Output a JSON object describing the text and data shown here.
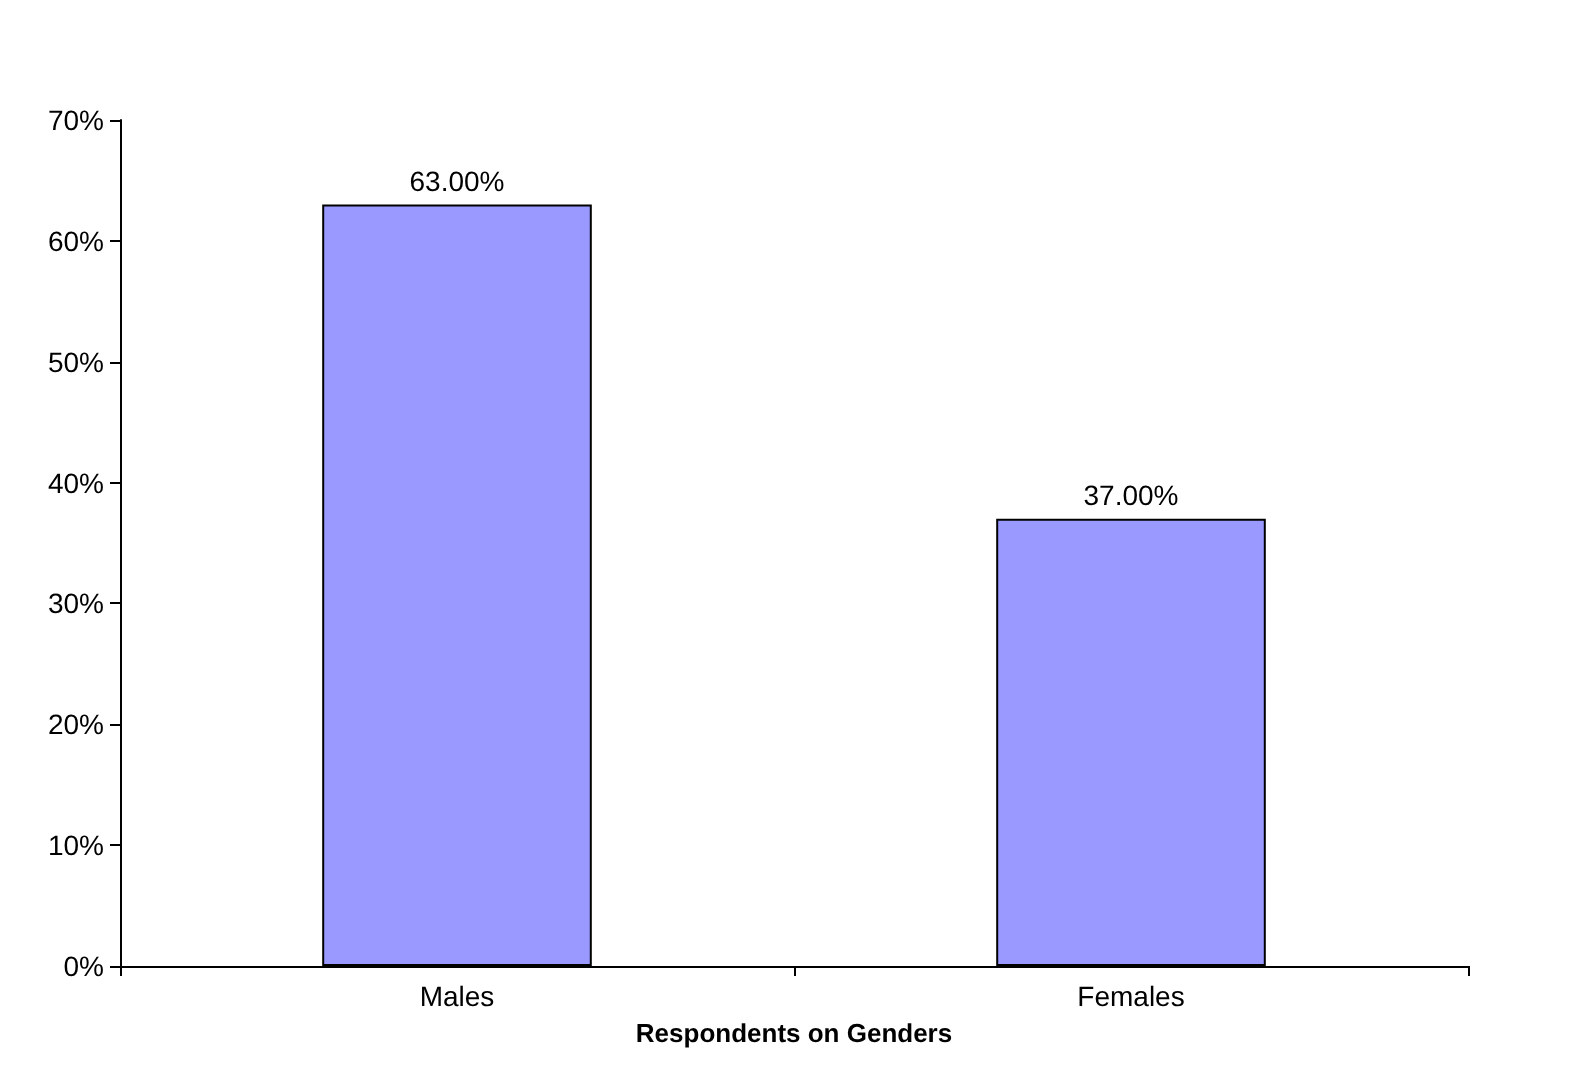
{
  "chart_data": {
    "type": "bar",
    "xlabel": "Respondents on Genders",
    "categories": [
      "Males",
      "Females"
    ],
    "values": [
      63,
      37
    ],
    "color": "#9999ff",
    "value_labels": [
      "63.00%",
      "37.00%"
    ],
    "ylim": [
      0,
      70
    ],
    "yticks": [
      {
        "value": 0,
        "label": "0%"
      },
      {
        "value": 10,
        "label": "10%"
      },
      {
        "value": 20,
        "label": "20%"
      },
      {
        "value": 30,
        "label": "30%"
      },
      {
        "value": 40,
        "label": "40%"
      },
      {
        "value": 50,
        "label": "50%"
      },
      {
        "value": 60,
        "label": "60%"
      },
      {
        "value": 70,
        "label": "70%"
      }
    ],
    "grid": false
  }
}
